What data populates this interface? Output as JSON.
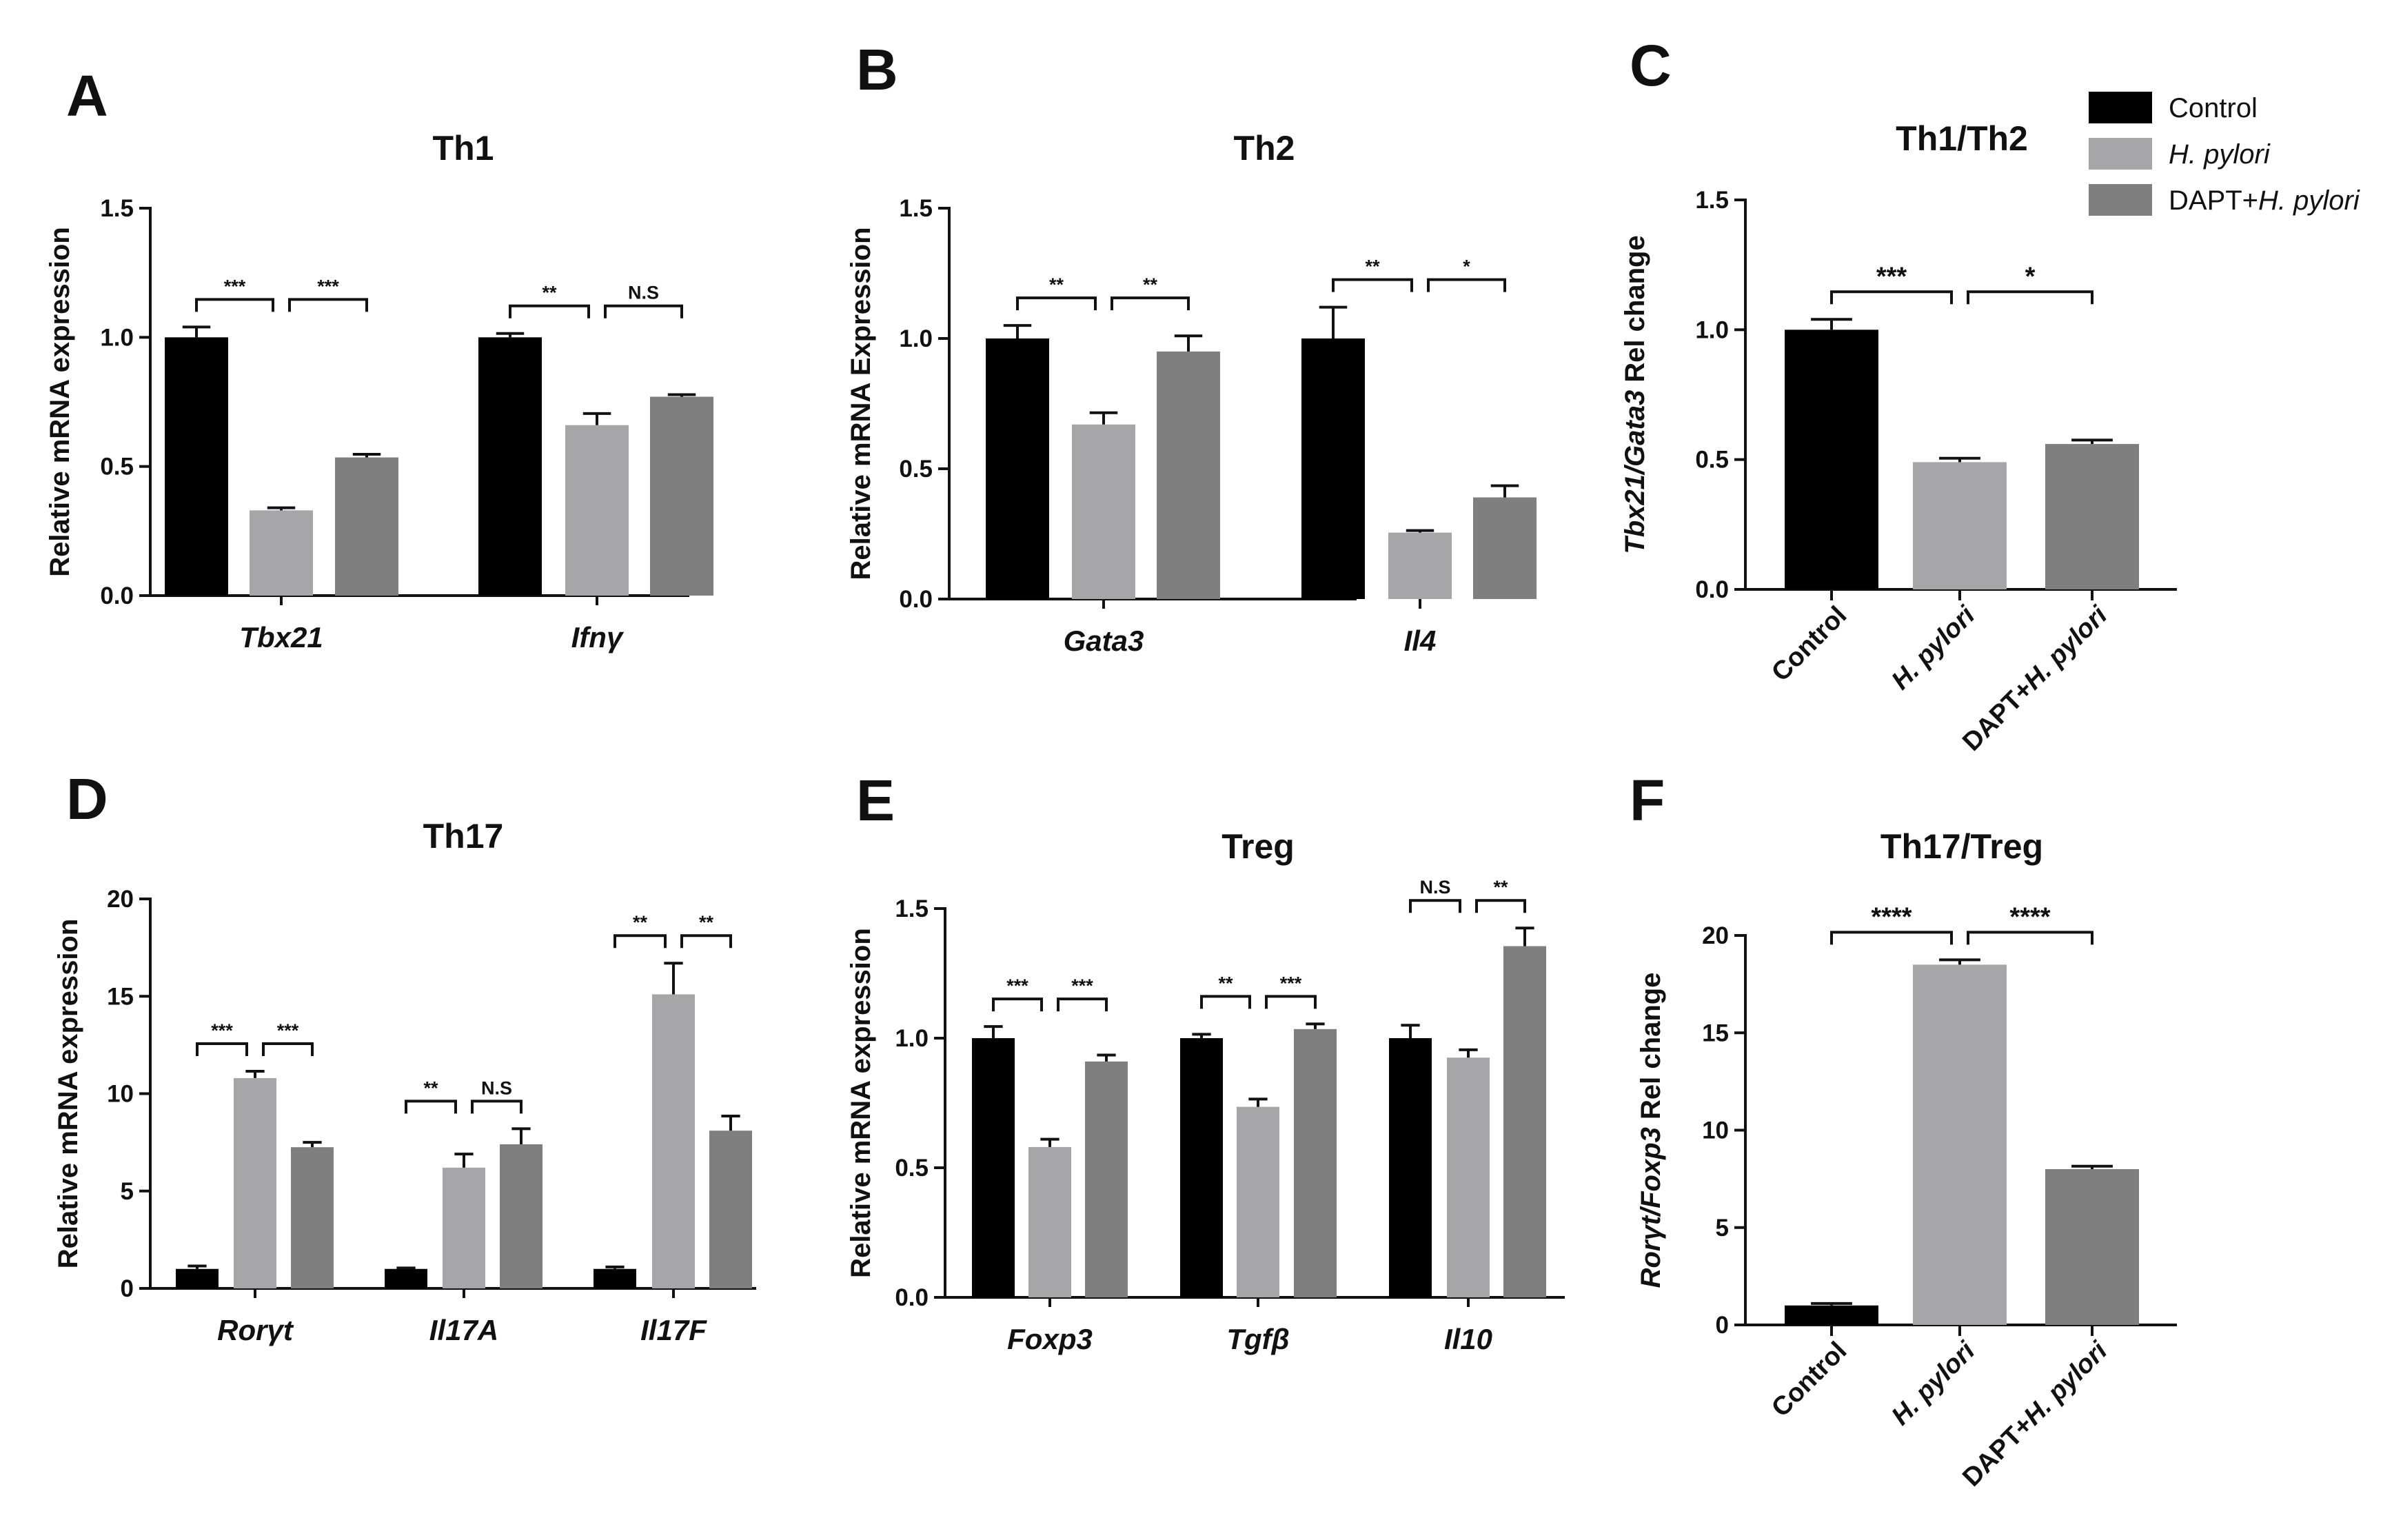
{
  "legend": {
    "items": [
      {
        "parts": [
          {
            "t": "Control",
            "i": false
          }
        ],
        "color": "#000000"
      },
      {
        "parts": [
          {
            "t": "H. pylori",
            "i": true
          }
        ],
        "color": "#a6a6a8"
      },
      {
        "parts": [
          {
            "t": "DAPT+",
            "i": false
          },
          {
            "t": "H. pylori",
            "i": true
          }
        ],
        "color": "#7f7f7f"
      }
    ]
  },
  "colors": [
    "#000000",
    "#a6a6a8",
    "#7f7f7f"
  ],
  "chart_data": [
    {
      "panel": "A",
      "type": "bar",
      "title": "Th1",
      "ylabel": [
        {
          "t": "Relative mRNA expression",
          "i": false
        }
      ],
      "ylim": [
        0,
        1.5
      ],
      "yticks": [
        "0.0",
        "0.5",
        "1.0",
        "1.5"
      ],
      "ytick_values": [
        0,
        0.5,
        1,
        1.5
      ],
      "categories": [
        "Tbx21",
        "Ifnγ"
      ],
      "series": [
        {
          "name": "Control",
          "values": [
            1.0,
            1.0
          ],
          "errors": [
            0.04,
            0.015
          ]
        },
        {
          "name": "H. pylori",
          "values": [
            0.33,
            0.66
          ],
          "errors": [
            0.01,
            0.045
          ]
        },
        {
          "name": "DAPT+H. pylori",
          "values": [
            0.535,
            0.77
          ],
          "errors": [
            0.012,
            0.008
          ]
        }
      ],
      "significance": [
        [
          "***",
          "***"
        ],
        [
          "**",
          "N.S"
        ]
      ]
    },
    {
      "panel": "B",
      "type": "bar",
      "title": "Th2",
      "ylabel": [
        {
          "t": "Relative mRNA Expression",
          "i": false
        }
      ],
      "ylim": [
        0,
        1.5
      ],
      "yticks": [
        "0.0",
        "0.5",
        "1.0",
        "1.5"
      ],
      "ytick_values": [
        0,
        0.5,
        1,
        1.5
      ],
      "categories": [
        "Gata3",
        "Il4"
      ],
      "series": [
        {
          "name": "Control",
          "values": [
            1.0,
            1.0
          ],
          "errors": [
            0.05,
            0.12
          ]
        },
        {
          "name": "H. pylori",
          "values": [
            0.67,
            0.255
          ],
          "errors": [
            0.045,
            0.008
          ]
        },
        {
          "name": "DAPT+H. pylori",
          "values": [
            0.95,
            0.39
          ],
          "errors": [
            0.06,
            0.045
          ]
        }
      ],
      "significance": [
        [
          "**",
          "**"
        ],
        [
          "**",
          "*"
        ]
      ]
    },
    {
      "panel": "C",
      "type": "bar",
      "title": "Th1/Th2",
      "ylabel": [
        {
          "t": "Tbx21/Gata3",
          "i": true
        },
        {
          "t": "  Rel change",
          "i": false
        }
      ],
      "ylim": [
        0,
        1.5
      ],
      "yticks": [
        "0.0",
        "0.5",
        "1.0",
        "1.5"
      ],
      "ytick_values": [
        0,
        0.5,
        1,
        1.5
      ],
      "categories": [
        "Control",
        "H. pylori",
        "DAPT+H. pylori"
      ],
      "values": [
        1.0,
        0.49,
        0.56
      ],
      "errors": [
        0.04,
        0.015,
        0.015
      ],
      "significance": [
        "***",
        "*"
      ]
    },
    {
      "panel": "D",
      "type": "bar",
      "title": "Th17",
      "ylabel": [
        {
          "t": "Relative mRNA expression",
          "i": false
        }
      ],
      "ylim": [
        0,
        20
      ],
      "yticks": [
        "0",
        "5",
        "10",
        "15",
        "20"
      ],
      "ytick_values": [
        0,
        5,
        10,
        15,
        20
      ],
      "categories": [
        "Rorγt",
        "Il17A",
        "Il17F"
      ],
      "series": [
        {
          "name": "Control",
          "values": [
            1.0,
            1.0,
            1.0
          ],
          "errors": [
            0.15,
            0.05,
            0.1
          ]
        },
        {
          "name": "H. pylori",
          "values": [
            10.8,
            6.2,
            15.1
          ],
          "errors": [
            0.35,
            0.7,
            1.6
          ]
        },
        {
          "name": "DAPT+H. pylori",
          "values": [
            7.25,
            7.4,
            8.1
          ],
          "errors": [
            0.25,
            0.8,
            0.75
          ]
        }
      ],
      "significance": [
        [
          "***",
          "***"
        ],
        [
          "**",
          "N.S"
        ],
        [
          "**",
          "**"
        ]
      ]
    },
    {
      "panel": "E",
      "type": "bar",
      "title": "Treg",
      "ylabel": [
        {
          "t": "Relative mRNA expression",
          "i": false
        }
      ],
      "ylim": [
        0,
        1.5
      ],
      "yticks": [
        "0.0",
        "0.5",
        "1.0",
        "1.5"
      ],
      "ytick_values": [
        0,
        0.5,
        1,
        1.5
      ],
      "categories": [
        "Foxp3",
        "Tgfβ",
        "Il10"
      ],
      "series": [
        {
          "name": "Control",
          "values": [
            1.0,
            1.0,
            1.0
          ],
          "errors": [
            0.045,
            0.015,
            0.05
          ]
        },
        {
          "name": "H. pylori",
          "values": [
            0.58,
            0.735,
            0.925
          ],
          "errors": [
            0.03,
            0.03,
            0.03
          ]
        },
        {
          "name": "DAPT+H. pylori",
          "values": [
            0.91,
            1.035,
            1.355
          ],
          "errors": [
            0.025,
            0.02,
            0.07
          ]
        }
      ],
      "significance": [
        [
          "***",
          "***"
        ],
        [
          "**",
          "***"
        ],
        [
          "N.S",
          "**"
        ]
      ]
    },
    {
      "panel": "F",
      "type": "bar",
      "title": "Th17/Treg",
      "ylabel": [
        {
          "t": "Rorγt/Foxp3",
          "i": true
        },
        {
          "t": "  Rel change",
          "i": false
        }
      ],
      "ylim": [
        0,
        20
      ],
      "yticks": [
        "0",
        "5",
        "10",
        "15",
        "20"
      ],
      "ytick_values": [
        0,
        5,
        10,
        15,
        20
      ],
      "categories": [
        "Control",
        "H. pylori",
        "DAPT+H. pylori"
      ],
      "values": [
        1.0,
        18.5,
        8.0
      ],
      "errors": [
        0.1,
        0.25,
        0.15
      ],
      "significance": [
        "****",
        "****"
      ]
    }
  ]
}
